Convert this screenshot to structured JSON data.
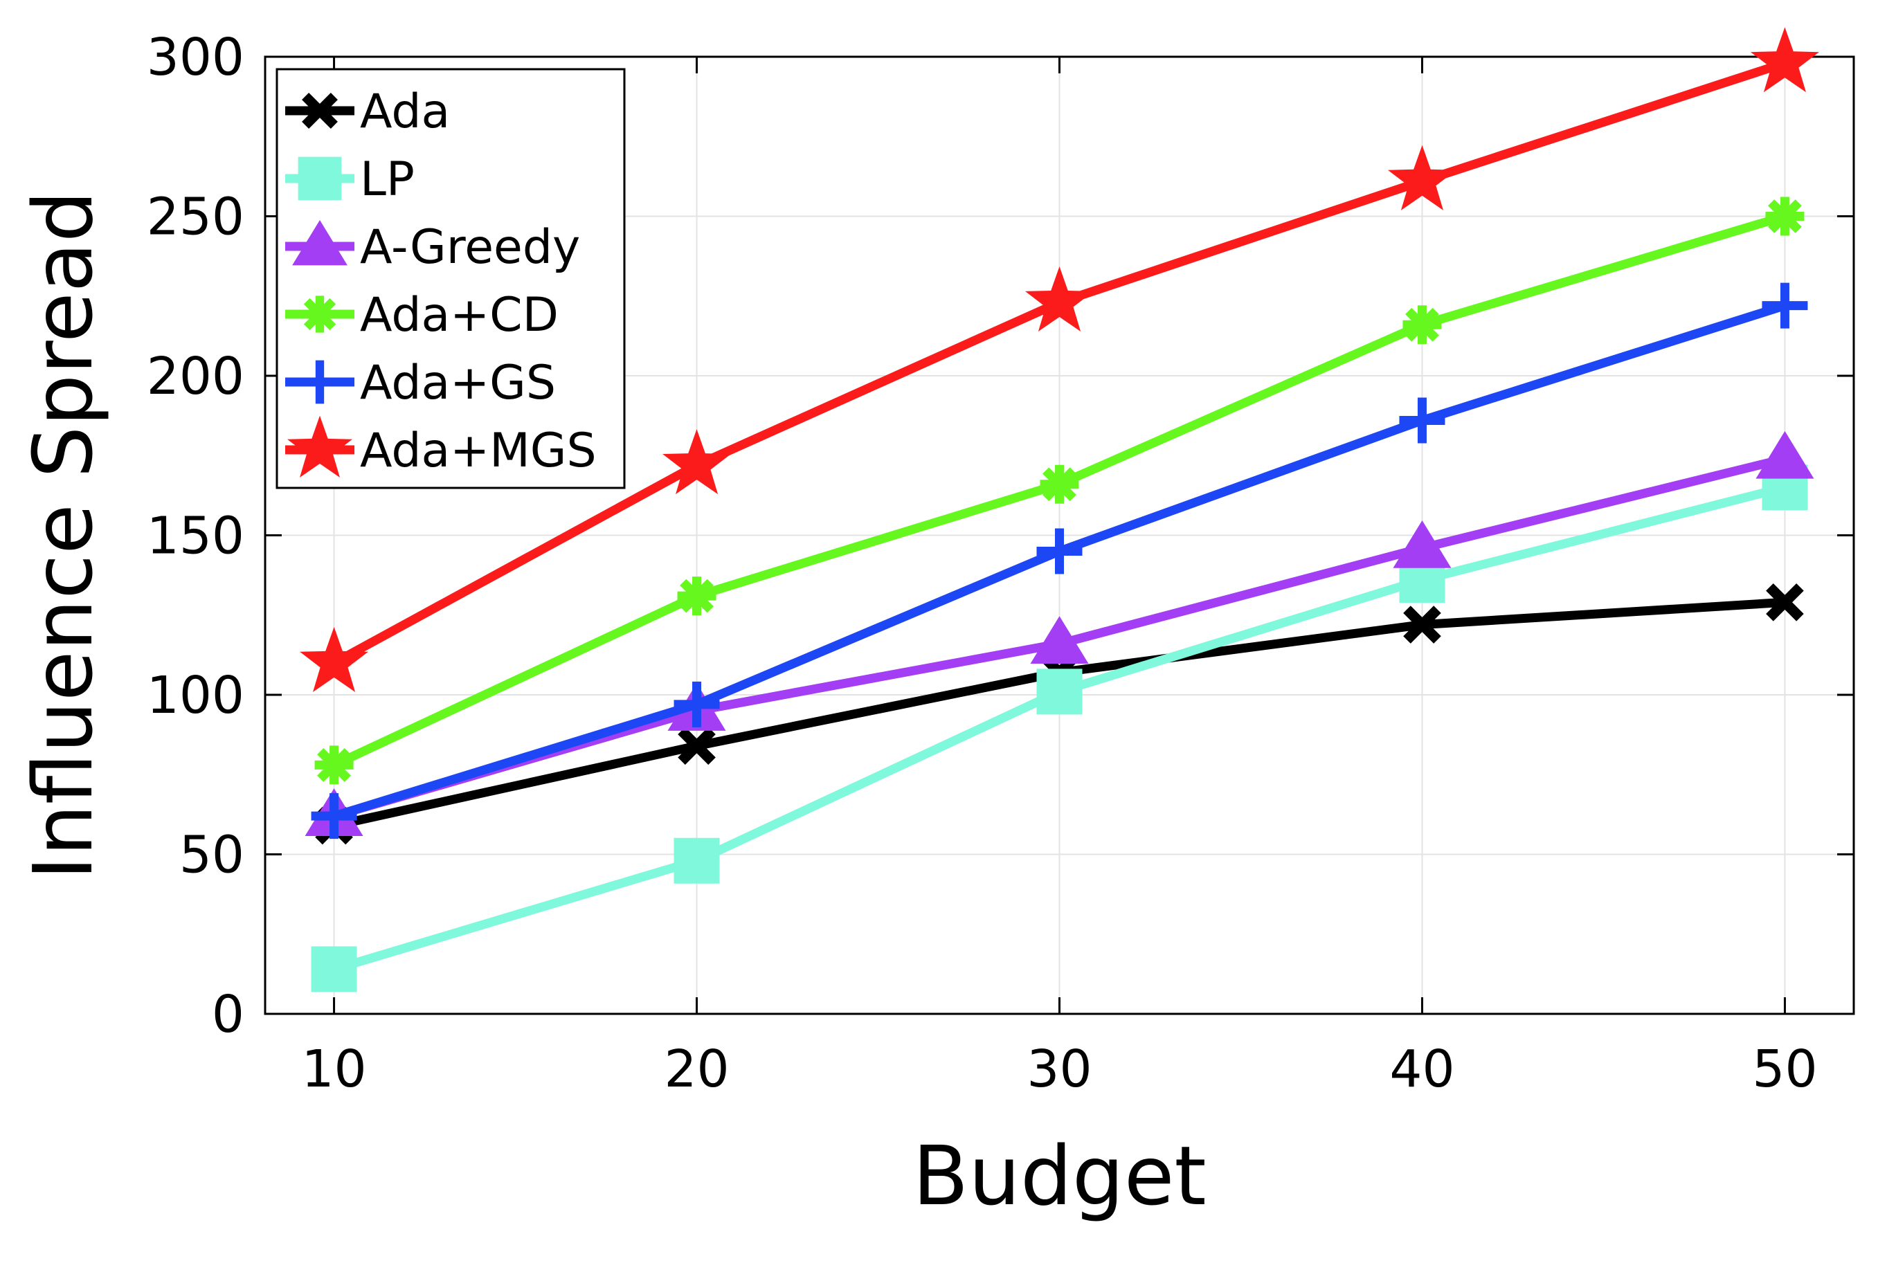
{
  "chart_data": {
    "type": "line",
    "xlabel": "Budget",
    "ylabel": "Influence Spread",
    "x": [
      10,
      20,
      30,
      40,
      50
    ],
    "xlim": [
      8.1,
      51.9
    ],
    "ylim": [
      0,
      300
    ],
    "xticks": [
      "10",
      "20",
      "30",
      "40",
      "50"
    ],
    "yticks": [
      "0",
      "50",
      "100",
      "150",
      "200",
      "250",
      "300"
    ],
    "grid": true,
    "legend_position": "top-left",
    "series": [
      {
        "name": "Ada",
        "color": "#000000",
        "marker": "x-icon",
        "values": [
          59,
          84,
          107,
          122,
          129
        ]
      },
      {
        "name": "LP",
        "color": "#7ff8dc",
        "marker": "square-icon",
        "values": [
          14,
          48,
          101,
          136,
          165
        ]
      },
      {
        "name": "A-Greedy",
        "color": "#a43ef4",
        "marker": "triangle-icon",
        "values": [
          62,
          95,
          116,
          146,
          174
        ]
      },
      {
        "name": "Ada+CD",
        "color": "#66f71f",
        "marker": "asterisk-icon",
        "values": [
          78,
          131,
          166,
          216,
          250
        ]
      },
      {
        "name": "Ada+GS",
        "color": "#1d46f5",
        "marker": "plus-icon",
        "values": [
          62,
          97,
          145,
          186,
          222
        ]
      },
      {
        "name": "Ada+MGS",
        "color": "#fb1b1b",
        "marker": "star-icon",
        "values": [
          110,
          172,
          223,
          261,
          298
        ]
      }
    ]
  }
}
